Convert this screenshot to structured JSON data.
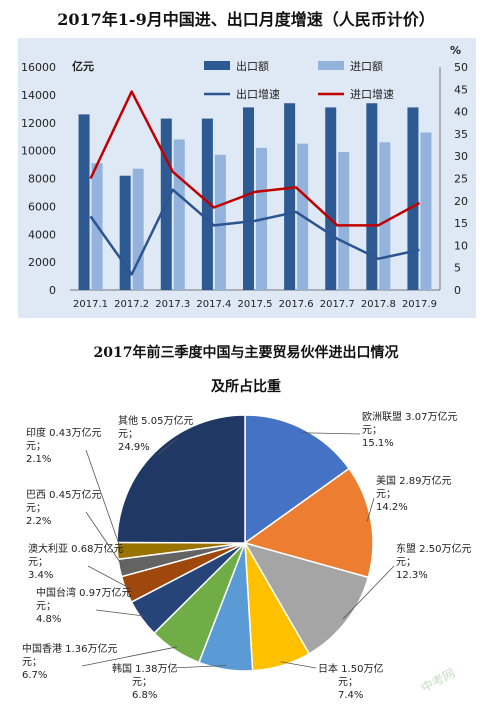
{
  "chart_data": [
    {
      "type": "bar",
      "title": "2017年1-9月中国进、出口月度增速（人民币计价）",
      "y_unit_left": "亿元",
      "y_unit_right": "%",
      "ylim_left": [
        0,
        16000
      ],
      "ylim_right": [
        0,
        50
      ],
      "yticks_left": [
        "0",
        "2000",
        "4000",
        "6000",
        "8000",
        "10000",
        "12000",
        "14000",
        "16000"
      ],
      "yticks_right": [
        "0",
        "5",
        "10",
        "15",
        "20",
        "25",
        "30",
        "35",
        "40",
        "45",
        "50"
      ],
      "categories": [
        "2017.1",
        "2017.2",
        "2017.3",
        "2017.4",
        "2017.5",
        "2017.6",
        "2017.7",
        "2017.8",
        "2017.9"
      ],
      "series": [
        {
          "name": "出口额",
          "type": "bar",
          "axis": "left",
          "color": "#2e5a93",
          "values": [
            12600,
            8200,
            12300,
            12300,
            13100,
            13400,
            13100,
            13400,
            13100
          ]
        },
        {
          "name": "进口额",
          "type": "bar",
          "axis": "left",
          "color": "#93b3dc",
          "values": [
            9100,
            8700,
            10800,
            9700,
            10200,
            10500,
            9900,
            10600,
            11300
          ]
        },
        {
          "name": "出口增速",
          "type": "line",
          "axis": "right",
          "color": "#2b5591",
          "values": [
            16.5,
            3.5,
            22.5,
            14.5,
            15.5,
            17.5,
            11.5,
            7,
            9
          ]
        },
        {
          "name": "进口增速",
          "type": "line",
          "axis": "right",
          "color": "#c00000",
          "values": [
            25,
            44.5,
            26.5,
            18.5,
            22,
            23,
            14.5,
            14.5,
            19.5
          ]
        }
      ],
      "legend": "top",
      "grid": false
    },
    {
      "type": "pie",
      "title_line1": "2017年前三季度中国与主要贸易伙伴进出口情况",
      "title_line2": "及所占比重",
      "slices": [
        {
          "name": "欧洲联盟",
          "amount": "3.07万亿元；",
          "percent": 15.1,
          "percent_label": "15.1%",
          "color": "#4472c4"
        },
        {
          "name": "美国",
          "amount": "2.89万亿元；",
          "percent": 14.2,
          "percent_label": "14.2%",
          "color": "#ed7d31"
        },
        {
          "name": "东盟",
          "amount": "2.50万亿元；",
          "percent": 12.3,
          "percent_label": "12.3%",
          "color": "#a5a5a5"
        },
        {
          "name": "日本",
          "amount": "1.50万亿元；",
          "percent": 7.4,
          "percent_label": "7.4%",
          "color": "#ffc000"
        },
        {
          "name": "韩国",
          "amount": "1.38万亿元；",
          "percent": 6.8,
          "percent_label": "6.8%",
          "color": "#5b9bd5"
        },
        {
          "name": "中国香港",
          "amount": "1.36万亿元；",
          "percent": 6.7,
          "percent_label": "6.7%",
          "color": "#70ad47"
        },
        {
          "name": "中国台湾",
          "amount": "0.97万亿元；",
          "percent": 4.8,
          "percent_label": "4.8%",
          "color": "#264478"
        },
        {
          "name": "澳大利亚",
          "amount": "0.68万亿元；",
          "percent": 3.4,
          "percent_label": "3.4%",
          "color": "#9e480e"
        },
        {
          "name": "巴西",
          "amount": "0.45万亿元；",
          "percent": 2.2,
          "percent_label": "2.2%",
          "color": "#636363"
        },
        {
          "name": "印度",
          "amount": "0.43万亿元；",
          "percent": 2.1,
          "percent_label": "2.1%",
          "color": "#997300"
        },
        {
          "name": "其他",
          "amount": "5.05万亿元；",
          "percent": 24.9,
          "percent_label": "24.9%",
          "color": "#203864"
        }
      ]
    }
  ],
  "watermark": "中考网"
}
